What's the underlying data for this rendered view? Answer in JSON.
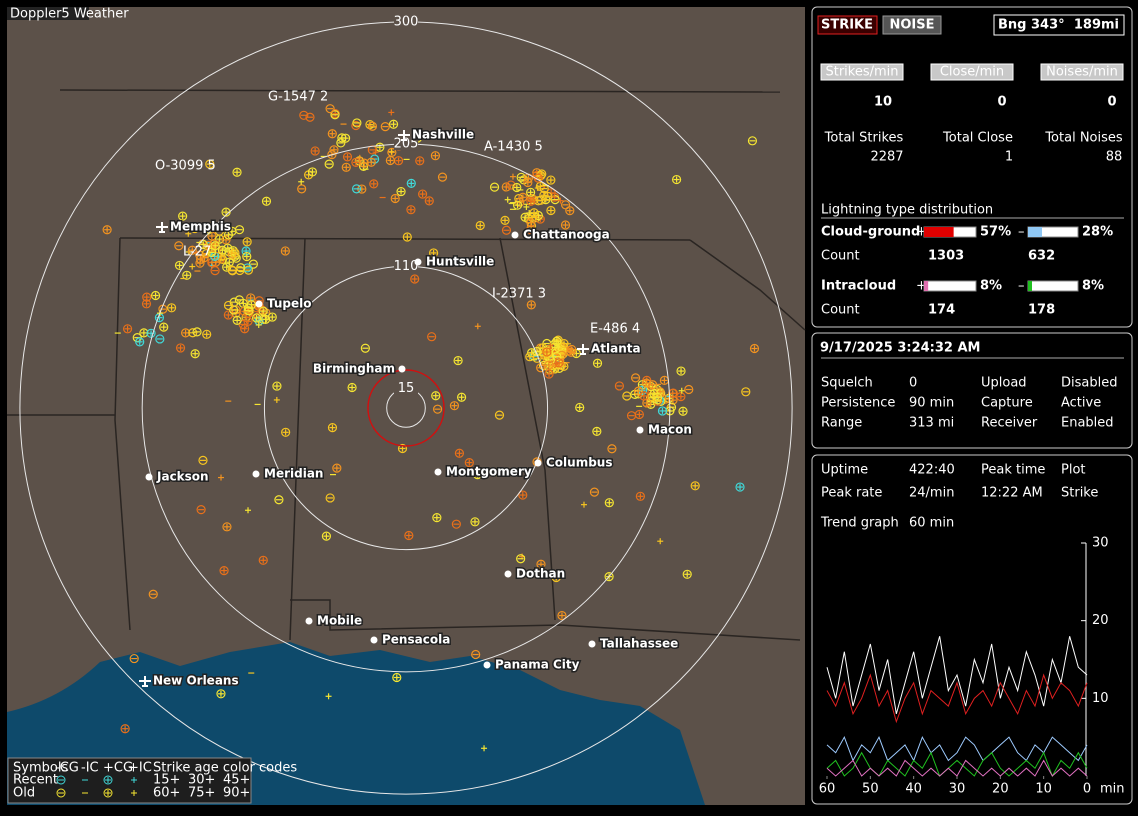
{
  "window_title": "Doppler5 Weather",
  "map": {
    "range_rings": [
      300,
      205,
      110,
      15
    ],
    "cities": [
      "Nashville",
      "Memphis",
      "Chattanooga",
      "Huntsville",
      "Tupelo",
      "Birmingham",
      "Atlanta",
      "Macon",
      "Jackson",
      "Meridian",
      "Montgomery",
      "Columbus",
      "Dothan",
      "Mobile",
      "Pensacola",
      "Tallahassee",
      "Panama City",
      "New Orleans"
    ],
    "stations": [
      "G-1547 2",
      "O-3099 5",
      "A-1430 5",
      "L-27",
      "I-2371 3",
      "E-486 4"
    ],
    "legend": {
      "symbols": "Symbols",
      "types": [
        "-CG",
        "-IC",
        "+CG",
        "+IC"
      ],
      "age_title": "Strike age color codes",
      "rows": [
        "Recent",
        "Old"
      ],
      "ages": [
        "15+",
        "30+",
        "45+",
        "60+",
        "75+",
        "90+"
      ]
    }
  },
  "panel": {
    "modes": [
      "STRIKE",
      "NOISE"
    ],
    "bearing": "Bng 343°",
    "distance": "189mi",
    "rates": [
      {
        "label": "Strikes/min",
        "value": 10
      },
      {
        "label": "Close/min",
        "value": 0
      },
      {
        "label": "Noises/min",
        "value": 0
      }
    ],
    "totals": [
      {
        "label": "Total Strikes",
        "value": 2287
      },
      {
        "label": "Total Close",
        "value": 1
      },
      {
        "label": "Total Noises",
        "value": 88
      }
    ],
    "distribution": {
      "title": "Lightning type distribution",
      "count_label": "Count",
      "signs": [
        "+",
        "–"
      ],
      "rows": [
        {
          "name": "Cloud-ground",
          "plus": {
            "value": 57,
            "label": "57%"
          },
          "minus": {
            "value": 28,
            "label": "28%"
          },
          "plus_count": 1303,
          "minus_count": 632
        },
        {
          "name": "Intracloud",
          "plus": {
            "value": 8,
            "label": "8%"
          },
          "minus": {
            "value": 8,
            "label": "8%"
          },
          "plus_count": 174,
          "minus_count": 178
        }
      ]
    },
    "timestamp": "9/17/2025 3:24:32 AM",
    "settings": [
      [
        "Squelch",
        "0",
        "Upload",
        "Disabled"
      ],
      [
        "Persistence",
        "90 min",
        "Capture",
        "Active"
      ],
      [
        "Range",
        "313 mi",
        "Receiver",
        "Enabled"
      ]
    ],
    "stats": [
      [
        "Uptime",
        "422:40",
        "Peak time",
        "Plot"
      ],
      [
        "Peak rate",
        "24/min",
        "12:22 AM",
        "Strike"
      ]
    ],
    "trend_label": "Trend graph",
    "trend_window": "60 min"
  },
  "chart_data": {
    "type": "line",
    "x_label": "min",
    "x": [
      60,
      58,
      56,
      54,
      52,
      50,
      48,
      46,
      44,
      42,
      40,
      38,
      36,
      34,
      32,
      30,
      28,
      26,
      24,
      22,
      20,
      18,
      16,
      14,
      12,
      10,
      8,
      6,
      4,
      2,
      0
    ],
    "xlim": [
      60,
      0
    ],
    "xticks": [
      60,
      50,
      40,
      30,
      20,
      10,
      0
    ],
    "ylim": [
      0,
      30
    ],
    "yticks": [
      10,
      20,
      30
    ],
    "series": [
      {
        "color": "#ffffff",
        "values": [
          14,
          10,
          16,
          9,
          13,
          17,
          11,
          15,
          8,
          12,
          16,
          10,
          14,
          18,
          11,
          13,
          9,
          15,
          12,
          17,
          10,
          14,
          11,
          16,
          13,
          9,
          15,
          12,
          18,
          14,
          13
        ]
      },
      {
        "color": "#e02020",
        "values": [
          11,
          9,
          12,
          8,
          10,
          13,
          9,
          11,
          7,
          10,
          12,
          8,
          11,
          10,
          9,
          12,
          8,
          10,
          11,
          9,
          12,
          10,
          8,
          11,
          9,
          13,
          10,
          12,
          11,
          9,
          12
        ]
      },
      {
        "color": "#9ecbff",
        "values": [
          4,
          3,
          5,
          2,
          4,
          3,
          5,
          2,
          3,
          4,
          2,
          5,
          3,
          4,
          2,
          3,
          5,
          4,
          2,
          3,
          4,
          5,
          3,
          2,
          4,
          3,
          5,
          4,
          3,
          2,
          4
        ]
      },
      {
        "color": "#20c020",
        "values": [
          1,
          2,
          0,
          1,
          3,
          1,
          0,
          2,
          1,
          0,
          2,
          1,
          3,
          0,
          1,
          2,
          1,
          0,
          2,
          3,
          1,
          0,
          1,
          2,
          1,
          3,
          0,
          2,
          1,
          3,
          1
        ]
      },
      {
        "color": "#e070c0",
        "values": [
          1,
          0,
          1,
          2,
          0,
          1,
          0,
          1,
          0,
          2,
          1,
          0,
          1,
          0,
          1,
          0,
          2,
          1,
          0,
          1,
          0,
          1,
          0,
          1,
          0,
          2,
          0,
          1,
          0,
          1,
          0
        ]
      }
    ]
  }
}
